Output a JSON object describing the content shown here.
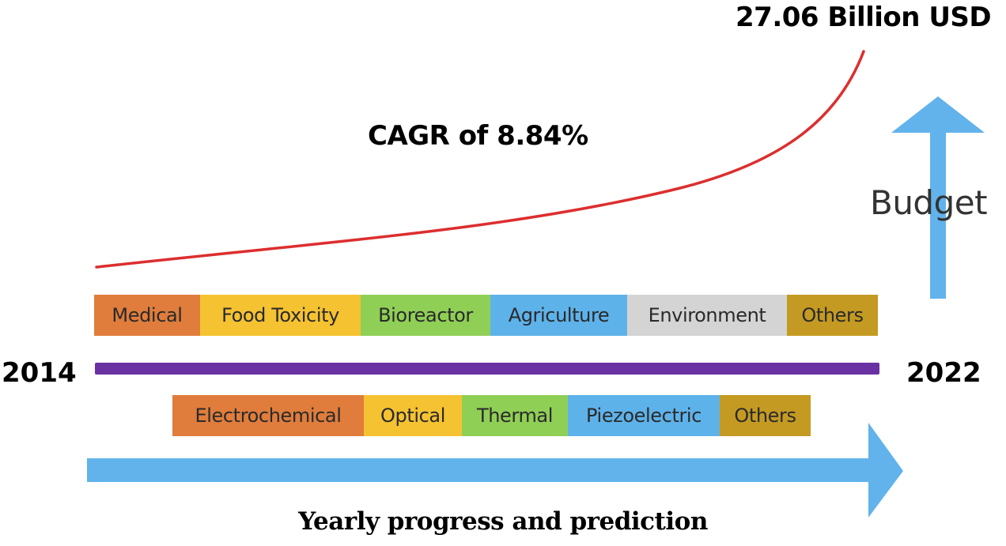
{
  "top_value": "27.06 Billion USD",
  "growth_label": "CAGR of 8.84%",
  "budget_label": "Budget",
  "start_year": "2014",
  "end_year": "2022",
  "caption": "Yearly progress and prediction",
  "applications": [
    {
      "label": "Medical",
      "color": "#e07d3c"
    },
    {
      "label": "Food Toxicity",
      "color": "#f5c231"
    },
    {
      "label": "Bioreactor",
      "color": "#8fcf55"
    },
    {
      "label": "Agriculture",
      "color": "#5eb2ea"
    },
    {
      "label": "Environment",
      "color": "#d4d4d4"
    },
    {
      "label": "Others",
      "color": "#c49a22"
    }
  ],
  "technologies": [
    {
      "label": "Electrochemical",
      "color": "#e07d3c"
    },
    {
      "label": "Optical",
      "color": "#f5c231"
    },
    {
      "label": "Thermal",
      "color": "#8fcf55"
    },
    {
      "label": "Piezoelectric",
      "color": "#5eb2ea"
    },
    {
      "label": "Others",
      "color": "#c49a22"
    }
  ],
  "colors": {
    "curve": "#dd2e2e",
    "timeline_bar": "#6a31a3",
    "arrow": "#62b3ec"
  }
}
